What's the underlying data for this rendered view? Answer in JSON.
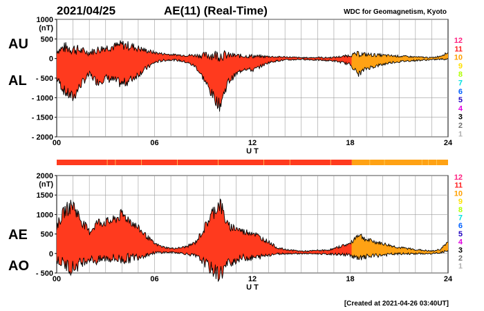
{
  "header": {
    "date": "2021/04/25",
    "title": "AE(11) (Real-Time)",
    "source": "WDC for Geomagnetism, Kyoto"
  },
  "footer": {
    "created": "[Created at 2021-04-26 03:40UT]"
  },
  "colors": {
    "fill_main": "#ff3a1e",
    "fill_late": "#ffa214",
    "outline": "#000000",
    "grid": "#9a9a9a"
  },
  "legend": [
    {
      "label": "12",
      "color": "#ff2080"
    },
    {
      "label": "11",
      "color": "#ff2020"
    },
    {
      "label": "10",
      "color": "#ffa000"
    },
    {
      "label": "9",
      "color": "#ffe000"
    },
    {
      "label": "8",
      "color": "#b0ff00"
    },
    {
      "label": "7",
      "color": "#00e0e0"
    },
    {
      "label": "6",
      "color": "#0060ff"
    },
    {
      "label": "5",
      "color": "#2000c0"
    },
    {
      "label": "4",
      "color": "#e000e0"
    },
    {
      "label": "3",
      "color": "#000000"
    },
    {
      "label": "2",
      "color": "#707070"
    },
    {
      "label": "1",
      "color": "#b0b0b0"
    }
  ],
  "station_bar": {
    "main_until_hour": 18.1,
    "colors_note": "11 stations until ~18 UT, 10 stations after"
  },
  "chart_data": [
    {
      "type": "area",
      "panel": "AU/AL",
      "labels": [
        "AU",
        "AL"
      ],
      "ylabel_unit": "(nT)",
      "ylim": [
        -2000,
        1000
      ],
      "yticks": [
        1000,
        500,
        0,
        -500,
        -1000,
        -1500,
        -2000
      ],
      "ytick_labels": [
        "1000",
        "500",
        "0",
        "- 500",
        "- 1000",
        "- 1500",
        "- 2000"
      ],
      "xlim": [
        0,
        24
      ],
      "xticks": [
        0,
        6,
        12,
        18,
        24
      ],
      "xtick_labels": [
        "00",
        "06",
        "12",
        "18",
        "24"
      ],
      "xlabel": "U T",
      "grid": true,
      "series": [
        {
          "name": "AU",
          "x": [
            0,
            0.5,
            1,
            1.5,
            2,
            2.5,
            3,
            3.5,
            4,
            4.5,
            5,
            5.5,
            6,
            6.5,
            7,
            7.5,
            8,
            8.5,
            9,
            9.5,
            10,
            10.5,
            11,
            11.5,
            12,
            12.5,
            13,
            13.5,
            14,
            14.5,
            15,
            15.5,
            16,
            16.5,
            17,
            17.5,
            18,
            18.5,
            19,
            19.5,
            20,
            20.5,
            21,
            21.5,
            22,
            22.5,
            23,
            23.5,
            24
          ],
          "values": [
            200,
            280,
            250,
            200,
            150,
            220,
            280,
            300,
            350,
            320,
            260,
            200,
            150,
            120,
            100,
            90,
            80,
            80,
            80,
            90,
            90,
            80,
            70,
            60,
            60,
            50,
            50,
            40,
            40,
            30,
            20,
            20,
            30,
            20,
            30,
            50,
            80,
            120,
            100,
            90,
            80,
            70,
            60,
            50,
            40,
            30,
            20,
            60,
            150
          ]
        },
        {
          "name": "AL",
          "x": [
            0,
            0.5,
            1,
            1.5,
            2,
            2.5,
            3,
            3.5,
            4,
            4.5,
            5,
            5.5,
            6,
            6.5,
            7,
            7.5,
            8,
            8.5,
            9,
            9.5,
            10,
            10.5,
            11,
            11.5,
            12,
            12.5,
            13,
            13.5,
            14,
            14.5,
            15,
            15.5,
            16,
            16.5,
            17,
            17.5,
            18,
            18.5,
            19,
            19.5,
            20,
            20.5,
            21,
            21.5,
            22,
            22.5,
            23,
            23.5,
            24
          ],
          "values": [
            -500,
            -850,
            -1000,
            -650,
            -400,
            -600,
            -500,
            -550,
            -650,
            -550,
            -400,
            -250,
            -100,
            -50,
            -30,
            -50,
            -100,
            -200,
            -500,
            -900,
            -1200,
            -600,
            -400,
            -250,
            -300,
            -200,
            -100,
            -60,
            -40,
            -30,
            -20,
            -30,
            -40,
            -50,
            -60,
            -100,
            -150,
            -400,
            -250,
            -200,
            -150,
            -100,
            -80,
            -60,
            -50,
            -40,
            -30,
            -20,
            -10
          ]
        }
      ]
    },
    {
      "type": "area",
      "panel": "AE/AO",
      "labels": [
        "AE",
        "AO"
      ],
      "ylabel_unit": "(nT)",
      "ylim": [
        -500,
        2000
      ],
      "yticks": [
        2000,
        1500,
        1000,
        500,
        0,
        -500
      ],
      "ytick_labels": [
        "2000",
        "1500",
        "1000",
        "500",
        "0",
        "- 500"
      ],
      "xlim": [
        0,
        24
      ],
      "xticks": [
        0,
        6,
        12,
        18,
        24
      ],
      "xtick_labels": [
        "00",
        "06",
        "12",
        "18",
        "24"
      ],
      "xlabel": "U T",
      "grid": true,
      "series": [
        {
          "name": "AE",
          "x": [
            0,
            0.5,
            1,
            1.5,
            2,
            2.5,
            3,
            3.5,
            4,
            4.5,
            5,
            5.5,
            6,
            6.5,
            7,
            7.5,
            8,
            8.5,
            9,
            9.5,
            10,
            10.5,
            11,
            11.5,
            12,
            12.5,
            13,
            13.5,
            14,
            14.5,
            15,
            15.5,
            16,
            16.5,
            17,
            17.5,
            18,
            18.5,
            19,
            19.5,
            20,
            20.5,
            21,
            21.5,
            22,
            22.5,
            23,
            23.5,
            24
          ],
          "values": [
            700,
            1100,
            1250,
            850,
            550,
            800,
            800,
            850,
            1000,
            850,
            650,
            450,
            250,
            170,
            130,
            140,
            180,
            280,
            600,
            1000,
            1300,
            700,
            650,
            550,
            550,
            400,
            300,
            150,
            100,
            80,
            60,
            60,
            80,
            80,
            120,
            200,
            250,
            500,
            350,
            300,
            250,
            200,
            150,
            130,
            100,
            80,
            60,
            100,
            300
          ]
        },
        {
          "name": "AO",
          "x": [
            0,
            0.5,
            1,
            1.5,
            2,
            2.5,
            3,
            3.5,
            4,
            4.5,
            5,
            5.5,
            6,
            6.5,
            7,
            7.5,
            8,
            8.5,
            9,
            9.5,
            10,
            10.5,
            11,
            11.5,
            12,
            12.5,
            13,
            13.5,
            14,
            14.5,
            15,
            15.5,
            16,
            16.5,
            17,
            17.5,
            18,
            18.5,
            19,
            19.5,
            20,
            20.5,
            21,
            21.5,
            22,
            22.5,
            23,
            23.5,
            24
          ],
          "values": [
            -150,
            -280,
            -380,
            -230,
            -130,
            -200,
            -110,
            -130,
            -150,
            -120,
            -70,
            -30,
            20,
            30,
            30,
            20,
            -10,
            -60,
            -200,
            -400,
            -550,
            -250,
            -160,
            -100,
            -120,
            -80,
            -30,
            -10,
            0,
            0,
            0,
            -5,
            -5,
            -15,
            -15,
            -25,
            -35,
            -150,
            -80,
            -60,
            -40,
            -20,
            -10,
            -5,
            -5,
            -5,
            -5,
            20,
            70
          ]
        }
      ]
    }
  ]
}
